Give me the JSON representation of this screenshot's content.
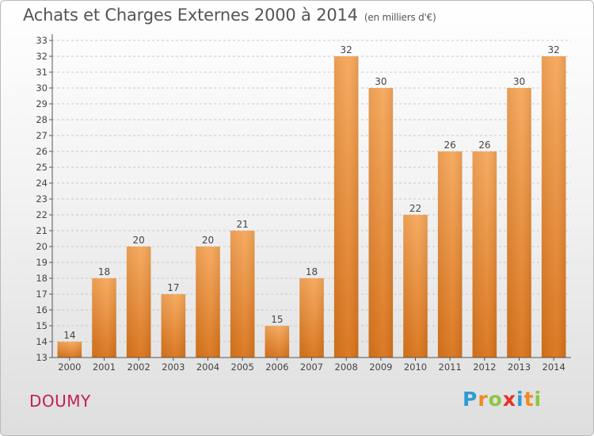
{
  "header": {
    "title": "Achats et Charges Externes 2000 à 2014",
    "subtitle": "(en milliers d'€)"
  },
  "footer": {
    "commune": "DOUMY",
    "brand": "Proxiti",
    "brand_letters": [
      {
        "char": "P",
        "color": "#2f9bd6"
      },
      {
        "char": "r",
        "color": "#f08a24"
      },
      {
        "char": "o",
        "color": "#8cc63f"
      },
      {
        "char": "x",
        "color": "#e6302b"
      },
      {
        "char": "i",
        "color": "#2f9bd6"
      },
      {
        "char": "t",
        "color": "#f08a24"
      },
      {
        "char": "i",
        "color": "#8cc63f"
      }
    ]
  },
  "chart_data": {
    "type": "bar",
    "title": "Achats et Charges Externes 2000 à 2014",
    "subtitle": "(en milliers d'€)",
    "categories": [
      "2000",
      "2001",
      "2002",
      "2003",
      "2004",
      "2005",
      "2006",
      "2007",
      "2008",
      "2009",
      "2010",
      "2011",
      "2012",
      "2013",
      "2014"
    ],
    "values": [
      14,
      18,
      20,
      17,
      20,
      21,
      15,
      18,
      32,
      30,
      22,
      26,
      26,
      30,
      32
    ],
    "ylim": [
      13,
      33
    ],
    "yticks": [
      13,
      14,
      15,
      16,
      17,
      18,
      19,
      20,
      21,
      22,
      23,
      24,
      25,
      26,
      27,
      28,
      29,
      30,
      31,
      32,
      33
    ],
    "grid": true,
    "legend": "none",
    "bar_color_top": "#f6a75a",
    "bar_color_bottom": "#d9731a",
    "grid_color": "#c9c9c9",
    "axis_color": "#555555"
  }
}
